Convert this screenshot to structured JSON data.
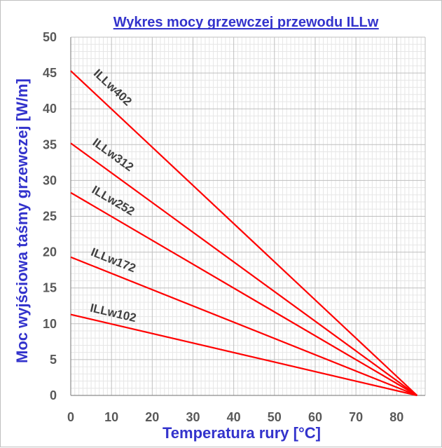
{
  "chart_data": {
    "type": "line",
    "title": "Wykres mocy grzewczej przewodu ILLw",
    "xlabel": "Temperatura rury [°C]",
    "ylabel": "Moc wyjściowa taśmy grzewczej [W/m]",
    "xlim": [
      0,
      87
    ],
    "ylim": [
      0,
      50
    ],
    "x_ticks": [
      0,
      10,
      20,
      30,
      40,
      50,
      60,
      70,
      80
    ],
    "y_ticks": [
      0,
      5,
      10,
      15,
      20,
      25,
      30,
      35,
      40,
      45,
      50
    ],
    "grid": true,
    "line_color": "#ff0000",
    "title_color": "#3333cc",
    "series": [
      {
        "name": "ILLw402",
        "x": [
          0,
          85
        ],
        "y": [
          45.3,
          0
        ]
      },
      {
        "name": "ILLw312",
        "x": [
          0,
          85
        ],
        "y": [
          35.2,
          0
        ]
      },
      {
        "name": "ILLw252",
        "x": [
          0,
          85
        ],
        "y": [
          28.3,
          0
        ]
      },
      {
        "name": "ILLw172",
        "x": [
          0,
          85
        ],
        "y": [
          19.3,
          0
        ]
      },
      {
        "name": "ILLw102",
        "x": [
          0,
          85
        ],
        "y": [
          11.3,
          0
        ]
      }
    ]
  }
}
